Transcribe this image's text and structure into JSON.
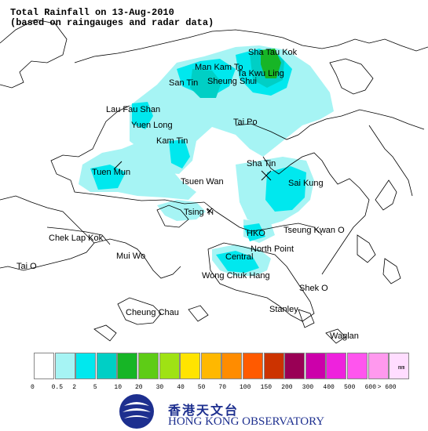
{
  "title": {
    "line1": "Total Rainfall on 13-Aug-2010",
    "line2": "(based on raingauges and radar data)"
  },
  "places": {
    "sha_tau_kok": "Sha Tau Kok",
    "man_kam_to": "Man Kam To",
    "ta_kwu_ling": "Ta Kwu Ling",
    "san_tin": "San Tin",
    "sheung_shui": "Sheung Shui",
    "lau_fau_shan": "Lau Fau Shan",
    "yuen_long": "Yuen Long",
    "tai_po": "Tai Po",
    "kam_tin": "Kam Tin",
    "sha_tin": "Sha Tin",
    "tuen_mun": "Tuen Mun",
    "tsuen_wan": "Tsuen Wan",
    "sai_kung": "Sai Kung",
    "tsing_yi": "Tsing Yi",
    "chek_lap_kok": "Chek Lap Kok",
    "hko": "HKO",
    "tseung_kwan_o": "Tseung Kwan O",
    "north_point": "North Point",
    "mui_wo": "Mui Wo",
    "central": "Central",
    "tai_o": "Tai O",
    "wong_chuk_hang": "Wong Chuk Hang",
    "shek_o": "Shek O",
    "cheung_chau": "Cheung Chau",
    "stanley": "Stanley",
    "waglan": "Waglan"
  },
  "legend": {
    "unit": "mm",
    "ticks": [
      "0",
      "0.5",
      "2",
      "5",
      "10",
      "20",
      "30",
      "40",
      "50",
      "70",
      "100",
      "150",
      "200",
      "300",
      "400",
      "500",
      "600",
      "> 600"
    ],
    "colors": [
      "#ffffff",
      "#a6f4f4",
      "#00e8ee",
      "#00cfc5",
      "#17b526",
      "#5ecc16",
      "#9fe214",
      "#ffe400",
      "#ffb800",
      "#ff8c00",
      "#ff5a00",
      "#cc3300",
      "#990055",
      "#cc00aa",
      "#ee22dd",
      "#ff55ee",
      "#ff99ee",
      "#ffddff"
    ]
  },
  "logo": {
    "chinese": "香港天文台",
    "english": "HONG KONG OBSERVATORY"
  }
}
